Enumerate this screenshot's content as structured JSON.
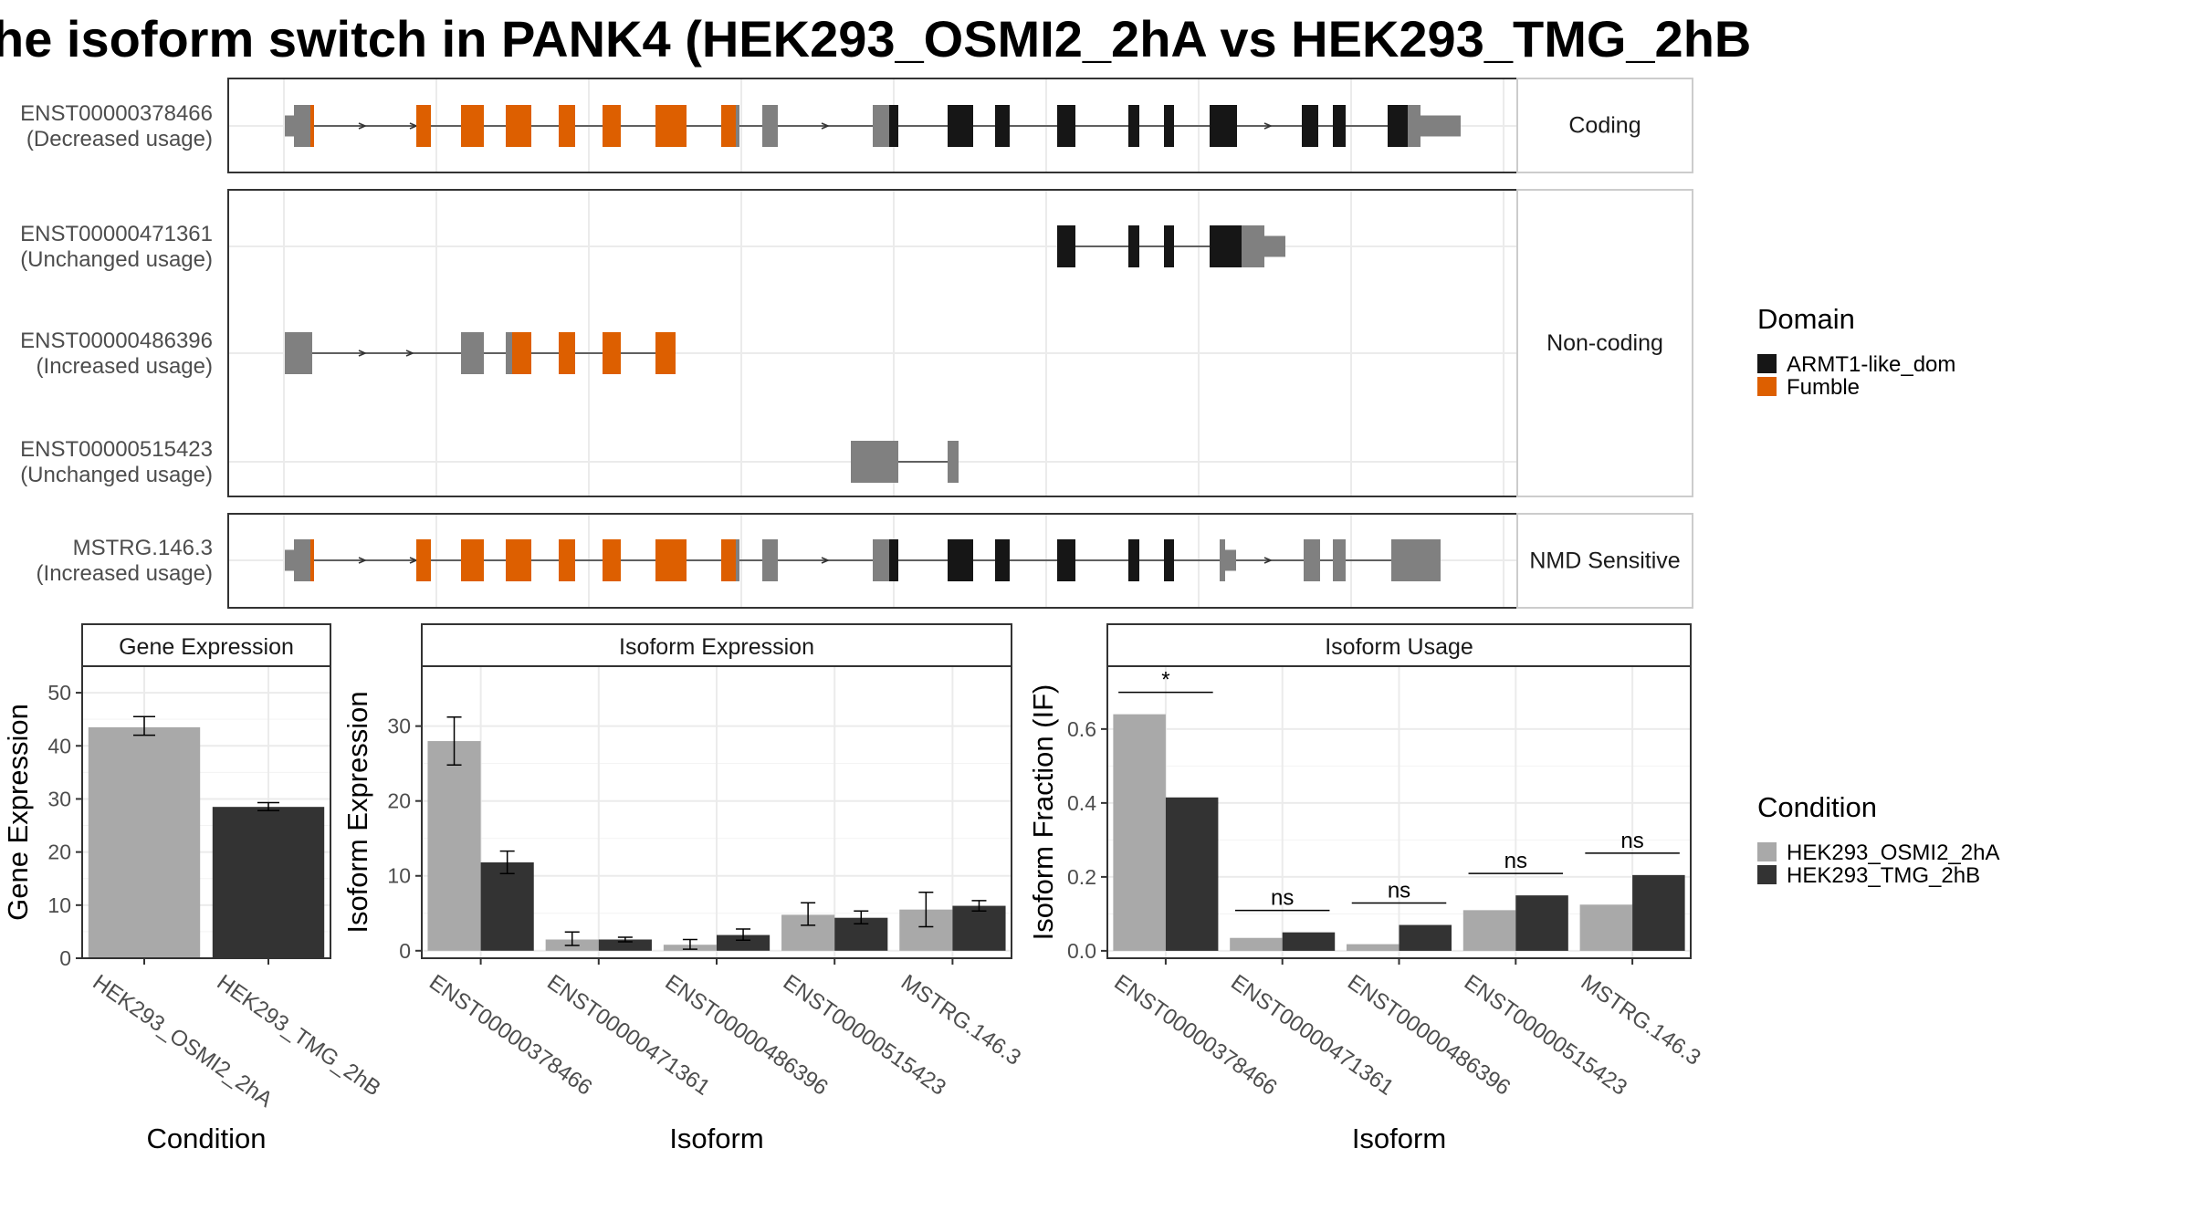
{
  "title": "he isoform switch in PANK4 (HEK293_OSMI2_2hA vs HEK293_TMG_2hB",
  "colors": {
    "domain_black": "#161616",
    "domain_orange": "#dd5f00",
    "exon_grey": "#808080",
    "cond1": "#a9a9a9",
    "cond2": "#333333",
    "strip_fill": "#ffffff",
    "grid": "#ebebeb",
    "panel_border": "#333333"
  },
  "transcripts": {
    "groups": [
      {
        "label": "Coding",
        "transcripts": [
          {
            "id": "ENST00000378466",
            "usage": "(Decreased usage)"
          }
        ]
      },
      {
        "label": "Non-coding",
        "transcripts": [
          {
            "id": "ENST00000471361",
            "usage": "(Unchanged usage)"
          },
          {
            "id": "ENST00000486396",
            "usage": "(Increased usage)"
          },
          {
            "id": "ENST00000515423",
            "usage": "(Unchanged usage)"
          }
        ]
      },
      {
        "label": "NMD Sensitive",
        "transcripts": [
          {
            "id": "MSTRG.146.3",
            "usage": "(Increased usage)"
          }
        ]
      }
    ]
  },
  "legends": {
    "domain": {
      "title": "Domain",
      "items": [
        "ARMT1-like_dom",
        "Fumble"
      ]
    },
    "condition": {
      "title": "Condition",
      "items": [
        "HEK293_OSMI2_2hA",
        "HEK293_TMG_2hB"
      ]
    }
  },
  "chart_data": [
    {
      "type": "bar",
      "panel": "Gene Expression",
      "xlabel": "Condition",
      "ylabel": "Gene Expression",
      "categories": [
        "HEK293_OSMI2_2hA",
        "HEK293_TMG_2hB"
      ],
      "values": [
        43.5,
        28.5
      ],
      "errors": [
        [
          42.0,
          45.5
        ],
        [
          27.8,
          29.3
        ]
      ],
      "ylim": [
        0,
        55
      ],
      "yticks": [
        0,
        10,
        20,
        30,
        40,
        50
      ],
      "grid": true
    },
    {
      "type": "bar",
      "panel": "Isoform Expression",
      "xlabel": "Isoform",
      "ylabel": "Isoform Expression",
      "categories": [
        "ENST00000378466",
        "ENST00000471361",
        "ENST00000486396",
        "ENST00000515423",
        "MSTRG.146.3"
      ],
      "series": [
        {
          "name": "HEK293_OSMI2_2hA",
          "values": [
            28.0,
            1.5,
            0.8,
            4.8,
            5.5
          ],
          "errors": [
            [
              24.8,
              31.2
            ],
            [
              0.7,
              2.5
            ],
            [
              0.2,
              1.5
            ],
            [
              3.4,
              6.4
            ],
            [
              3.2,
              7.8
            ]
          ]
        },
        {
          "name": "HEK293_TMG_2hB",
          "values": [
            11.8,
            1.5,
            2.1,
            4.4,
            6.0
          ],
          "errors": [
            [
              10.3,
              13.3
            ],
            [
              1.2,
              1.8
            ],
            [
              1.4,
              2.9
            ],
            [
              3.6,
              5.3
            ],
            [
              5.3,
              6.7
            ]
          ]
        }
      ],
      "ylim": [
        -1,
        38
      ],
      "yticks": [
        0,
        10,
        20,
        30
      ],
      "grid": true
    },
    {
      "type": "bar",
      "panel": "Isoform Usage",
      "xlabel": "Isoform",
      "ylabel": "Isoform Fraction (IF)",
      "categories": [
        "ENST00000378466",
        "ENST00000471361",
        "ENST00000486396",
        "ENST00000515423",
        "MSTRG.146.3"
      ],
      "series": [
        {
          "name": "HEK293_OSMI2_2hA",
          "values": [
            0.64,
            0.035,
            0.018,
            0.11,
            0.125
          ]
        },
        {
          "name": "HEK293_TMG_2hB",
          "values": [
            0.415,
            0.05,
            0.07,
            0.15,
            0.205
          ]
        }
      ],
      "significance": [
        "*",
        "ns",
        "ns",
        "ns",
        "ns"
      ],
      "ylim": [
        -0.02,
        0.77
      ],
      "yticks": [
        "0.0",
        "0.2",
        "0.4",
        "0.6"
      ],
      "grid": true
    }
  ]
}
